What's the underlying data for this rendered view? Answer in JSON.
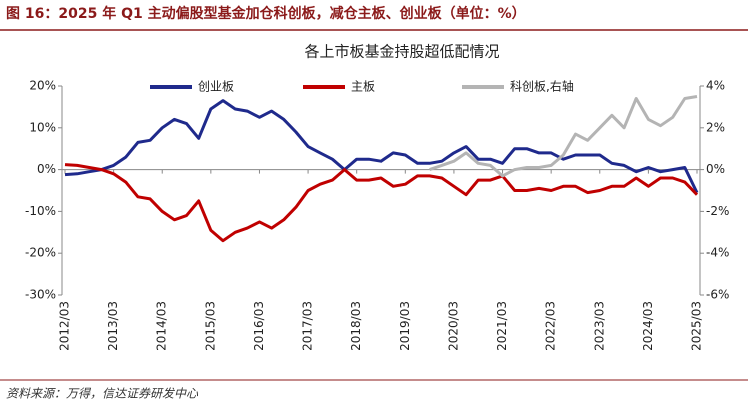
{
  "header": {
    "title": "图 16：2025 年 Q1 主动偏股型基金加仓科创板，减仓主板、创业板（单位：%）"
  },
  "source": "资料来源：万得，信达证券研发中心",
  "chart_data": {
    "type": "line",
    "title": "各上市板基金持股超低配情况",
    "categories": [
      "2012/03",
      null,
      null,
      null,
      "2013/03",
      null,
      null,
      null,
      "2014/03",
      null,
      null,
      null,
      "2015/03",
      null,
      null,
      null,
      "2016/03",
      null,
      null,
      null,
      "2017/03",
      null,
      null,
      null,
      "2018/03",
      null,
      null,
      null,
      "2019/03",
      null,
      null,
      null,
      "2020/03",
      null,
      null,
      null,
      "2021/03",
      null,
      null,
      null,
      "2022/03",
      null,
      null,
      null,
      "2023/03",
      null,
      null,
      null,
      "2024/03",
      null,
      null,
      null,
      "2025/03"
    ],
    "series": [
      {
        "name": "创业板",
        "color": "#1f2a8c",
        "axis": "y",
        "values": [
          -1.2,
          -1,
          -0.5,
          0,
          1,
          3,
          6.5,
          7,
          10,
          12,
          11,
          7.5,
          14.5,
          16.5,
          14.5,
          14,
          12.5,
          14,
          12,
          9,
          5.5,
          4,
          2.5,
          0,
          2.5,
          2.5,
          2,
          4,
          3.5,
          1.5,
          1.5,
          2,
          4,
          5.5,
          2.5,
          2.5,
          1.5,
          5,
          5,
          4,
          4,
          2.5,
          3.5,
          3.5,
          3.5,
          1.5,
          1,
          -0.5,
          0.5,
          -0.5,
          0,
          0.5,
          -5.5
        ]
      },
      {
        "name": "主板",
        "color": "#c00000",
        "axis": "y",
        "values": [
          1.2,
          1,
          0.5,
          0,
          -1,
          -3,
          -6.5,
          -7,
          -10,
          -12,
          -11,
          -7.5,
          -14.5,
          -17,
          -15,
          -14,
          -12.5,
          -14,
          -12,
          -9,
          -5,
          -3.5,
          -2.5,
          0,
          -2.5,
          -2.5,
          -2,
          -4,
          -3.5,
          -1.5,
          -1.5,
          -2,
          -4,
          -6,
          -2.5,
          -2.5,
          -1.5,
          -5,
          -5,
          -4.5,
          -5,
          -4,
          -4,
          -5.5,
          -5,
          -4,
          -4,
          -2,
          -4,
          -2,
          -2,
          -3,
          -6
        ]
      },
      {
        "name": "科创板,右轴",
        "color": "#b4b4b4",
        "axis": "y2",
        "values": [
          null,
          null,
          null,
          null,
          null,
          null,
          null,
          null,
          null,
          null,
          null,
          null,
          null,
          null,
          null,
          null,
          null,
          null,
          null,
          null,
          null,
          null,
          null,
          null,
          null,
          null,
          null,
          null,
          null,
          null,
          0,
          0.2,
          0.4,
          0.8,
          0.3,
          0.2,
          -0.3,
          0,
          0.1,
          0.1,
          0.2,
          0.7,
          1.7,
          1.4,
          2.0,
          2.6,
          2.0,
          3.4,
          2.4,
          2.1,
          2.5,
          3.4,
          3.5
        ]
      }
    ],
    "ylim": [
      -30,
      20
    ],
    "yticks": [
      {
        "value": -30,
        "label": "-30%"
      },
      {
        "value": -20,
        "label": "-20%"
      },
      {
        "value": -10,
        "label": "-10%"
      },
      {
        "value": 0,
        "label": "0%"
      },
      {
        "value": 10,
        "label": "10%"
      },
      {
        "value": 20,
        "label": "20%"
      }
    ],
    "y2lim": [
      -6,
      4
    ],
    "y2ticks": [
      {
        "value": -6,
        "label": "-6%"
      },
      {
        "value": -4,
        "label": "-4%"
      },
      {
        "value": -2,
        "label": "-2%"
      },
      {
        "value": 0,
        "label": "0%"
      },
      {
        "value": 2,
        "label": "2%"
      },
      {
        "value": 4,
        "label": "4%"
      }
    ],
    "legend": "top"
  }
}
